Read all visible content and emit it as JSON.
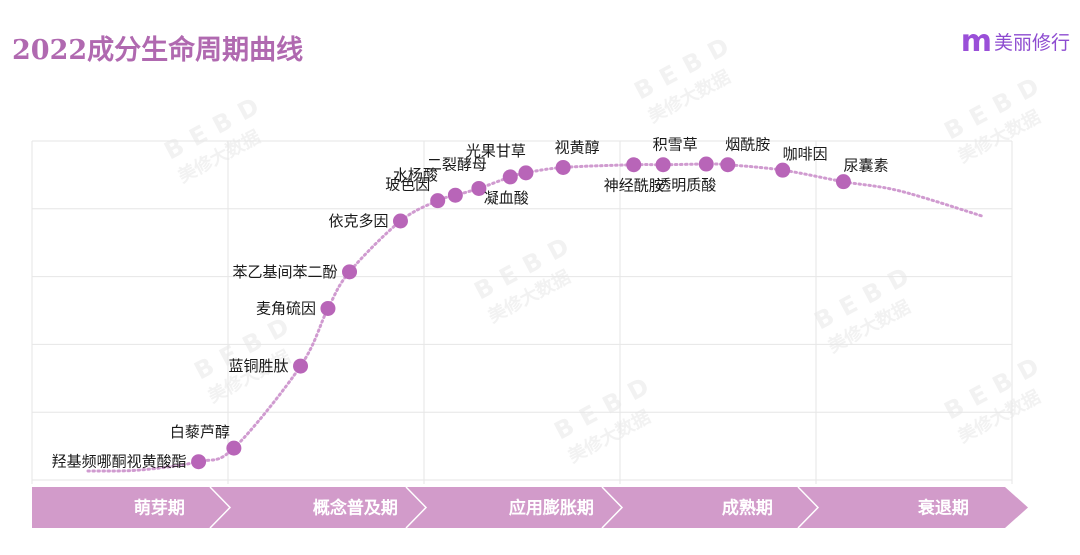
{
  "header": {
    "title": "2022成分生命周期曲线",
    "brand_logo": "m",
    "brand_name": "美丽修行"
  },
  "watermark": {
    "text": "BEBD",
    "subtext": "美修大数据"
  },
  "colors": {
    "title": "#b069b0",
    "brand": "#9a4fd8",
    "point": "#b865b8",
    "curve": "#d09bd0",
    "band": "#d29bca",
    "grid": "#e6e6e6"
  },
  "phases": [
    {
      "label": "萌芽期"
    },
    {
      "label": "概念普及期"
    },
    {
      "label": "应用膨胀期"
    },
    {
      "label": "成熟期"
    },
    {
      "label": "衰退期"
    }
  ],
  "chart_data": {
    "type": "scatter",
    "title": "2022成分生命周期曲线",
    "xlabel": "",
    "ylabel": "",
    "x_categories": [
      "萌芽期",
      "概念普及期",
      "应用膨胀期",
      "成熟期",
      "衰退期"
    ],
    "xlim": [
      0,
      5
    ],
    "ylim": [
      0,
      5
    ],
    "grid": true,
    "legend": "none",
    "curve": "dotted S-shaped lifecycle curve rising through 萌芽期/概念普及期, plateauing in 应用膨胀期/成熟期, declining in 衰退期",
    "points": [
      {
        "name": "羟基频哪酮视黄酸酯",
        "x": 0.85,
        "y": 0.27,
        "label_pos": "left"
      },
      {
        "name": "白藜芦醇",
        "x": 1.03,
        "y": 0.47,
        "label_pos": "top"
      },
      {
        "name": "蓝铜胜肽",
        "x": 1.37,
        "y": 1.68,
        "label_pos": "left"
      },
      {
        "name": "麦角硫因",
        "x": 1.51,
        "y": 2.53,
        "label_pos": "left"
      },
      {
        "name": "苯乙基间苯二酚",
        "x": 1.62,
        "y": 3.07,
        "label_pos": "left"
      },
      {
        "name": "依克多因",
        "x": 1.88,
        "y": 3.82,
        "label_pos": "left"
      },
      {
        "name": "玻色因",
        "x": 2.07,
        "y": 4.12,
        "label_pos": "top"
      },
      {
        "name": "水杨酸",
        "x": 2.16,
        "y": 4.2,
        "label_pos": "top"
      },
      {
        "name": "二裂酵母",
        "x": 2.28,
        "y": 4.3,
        "label_pos": "top"
      },
      {
        "name": "凝血酸",
        "x": 2.44,
        "y": 4.47,
        "label_pos": "bottom"
      },
      {
        "name": "光果甘草",
        "x": 2.52,
        "y": 4.53,
        "label_pos": "top"
      },
      {
        "name": "视黄醇",
        "x": 2.71,
        "y": 4.61,
        "label_pos": "top"
      },
      {
        "name": "神经酰胺",
        "x": 3.07,
        "y": 4.65,
        "label_pos": "bottom"
      },
      {
        "name": "积雪草",
        "x": 3.22,
        "y": 4.65,
        "label_pos": "top"
      },
      {
        "name": "透明质酸",
        "x": 3.44,
        "y": 4.66,
        "label_pos": "bottom"
      },
      {
        "name": "烟酰胺",
        "x": 3.55,
        "y": 4.65,
        "label_pos": "top"
      },
      {
        "name": "咖啡因",
        "x": 3.83,
        "y": 4.57,
        "label_pos": "top-right"
      },
      {
        "name": "尿囊素",
        "x": 4.14,
        "y": 4.4,
        "label_pos": "top-right"
      }
    ]
  }
}
